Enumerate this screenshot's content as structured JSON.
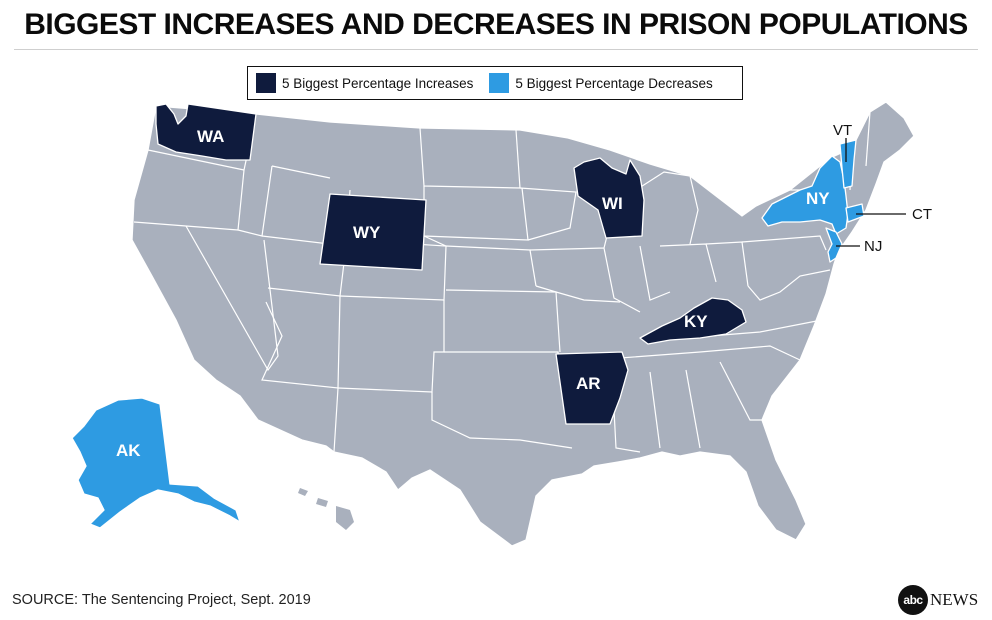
{
  "title": "BIGGEST INCREASES AND DECREASES IN PRISON POPULATIONS",
  "legend": {
    "increase": {
      "label": "5 Biggest Percentage Increases",
      "color": "#0f1b3d"
    },
    "decrease": {
      "label": "5 Biggest Percentage Decreases",
      "color": "#2e9be2"
    }
  },
  "colors": {
    "land": "#a9b0bd",
    "border": "#ffffff",
    "increase": "#0f1b3d",
    "decrease": "#2e9be2"
  },
  "states": {
    "WA": "WA",
    "WY": "WY",
    "WI": "WI",
    "KY": "KY",
    "AR": "AR",
    "NY": "NY",
    "AK": "AK",
    "VT": "VT",
    "CT": "CT",
    "NJ": "NJ"
  },
  "highlighted": {
    "increases": [
      "WA",
      "WY",
      "WI",
      "KY",
      "AR"
    ],
    "decreases": [
      "AK",
      "NY",
      "VT",
      "CT",
      "NJ"
    ]
  },
  "source": "SOURCE: The Sentencing Project, Sept. 2019",
  "logo": {
    "mark": "abc",
    "text": "NEWS"
  }
}
